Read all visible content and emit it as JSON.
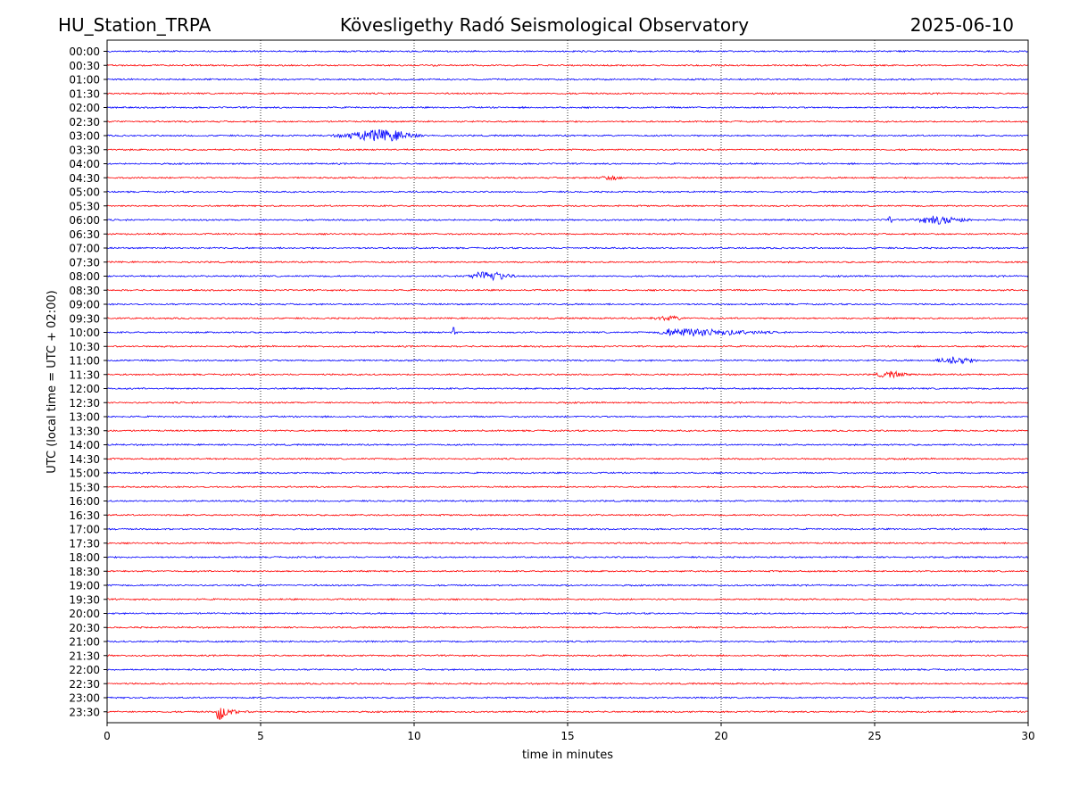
{
  "header": {
    "station": "HU_Station_TRPA",
    "observatory": "Kövesligethy Radó Seismological Observatory",
    "date": "2025-06-10"
  },
  "chart_data": {
    "type": "line",
    "title": "Kövesligethy Radó Seismological Observatory",
    "xlabel": "time in minutes",
    "ylabel": "UTC (local time = UTC + 02:00)",
    "xlim": [
      0,
      30
    ],
    "x_ticks": [
      0,
      5,
      10,
      15,
      20,
      25,
      30
    ],
    "x_gridlines": [
      5,
      10,
      15,
      20,
      25
    ],
    "grid": "vertical dotted",
    "legend": "none",
    "row_labels": [
      "00:00",
      "00:30",
      "01:00",
      "01:30",
      "02:00",
      "02:30",
      "03:00",
      "03:30",
      "04:00",
      "04:30",
      "05:00",
      "05:30",
      "06:00",
      "06:30",
      "07:00",
      "07:30",
      "08:00",
      "08:30",
      "09:00",
      "09:30",
      "10:00",
      "10:30",
      "11:00",
      "11:30",
      "12:00",
      "12:30",
      "13:00",
      "13:30",
      "14:00",
      "14:30",
      "15:00",
      "15:30",
      "16:00",
      "16:30",
      "17:00",
      "17:30",
      "18:00",
      "18:30",
      "19:00",
      "19:30",
      "20:00",
      "20:30",
      "21:00",
      "21:30",
      "22:00",
      "22:30",
      "23:00",
      "23:30"
    ],
    "colors": [
      "#0000ff",
      "#ff0000"
    ],
    "noise_amplitude": 1,
    "events": [
      {
        "row": "03:00",
        "start_min": 7.0,
        "peak_min": 9.0,
        "end_min": 10.5,
        "amplitude": 6,
        "kind": "spindle"
      },
      {
        "row": "04:30",
        "start_min": 15.8,
        "peak_min": 16.4,
        "end_min": 17.0,
        "amplitude": 2,
        "kind": "spindle"
      },
      {
        "row": "06:00",
        "start_min": 25.4,
        "peak_min": 25.5,
        "end_min": 25.7,
        "amplitude": 6,
        "kind": "spike"
      },
      {
        "row": "06:00",
        "start_min": 26.0,
        "peak_min": 27.0,
        "end_min": 28.5,
        "amplitude": 4,
        "kind": "spindle"
      },
      {
        "row": "08:00",
        "start_min": 11.5,
        "peak_min": 12.4,
        "end_min": 13.5,
        "amplitude": 5,
        "kind": "spindle"
      },
      {
        "row": "09:30",
        "start_min": 17.5,
        "peak_min": 18.3,
        "end_min": 19.0,
        "amplitude": 2,
        "kind": "spindle"
      },
      {
        "row": "10:00",
        "start_min": 11.2,
        "peak_min": 11.3,
        "end_min": 11.5,
        "amplitude": 6,
        "kind": "spike"
      },
      {
        "row": "10:00",
        "start_min": 17.8,
        "peak_min": 18.4,
        "end_min": 22.5,
        "amplitude": 4,
        "kind": "spindle"
      },
      {
        "row": "11:00",
        "start_min": 26.8,
        "peak_min": 27.6,
        "end_min": 28.5,
        "amplitude": 4,
        "kind": "spindle"
      },
      {
        "row": "11:30",
        "start_min": 24.8,
        "peak_min": 25.5,
        "end_min": 26.3,
        "amplitude": 3,
        "kind": "spindle"
      },
      {
        "row": "23:30",
        "start_min": 3.55,
        "peak_min": 3.6,
        "end_min": 5.0,
        "amplitude": 13,
        "kind": "quake"
      }
    ]
  }
}
